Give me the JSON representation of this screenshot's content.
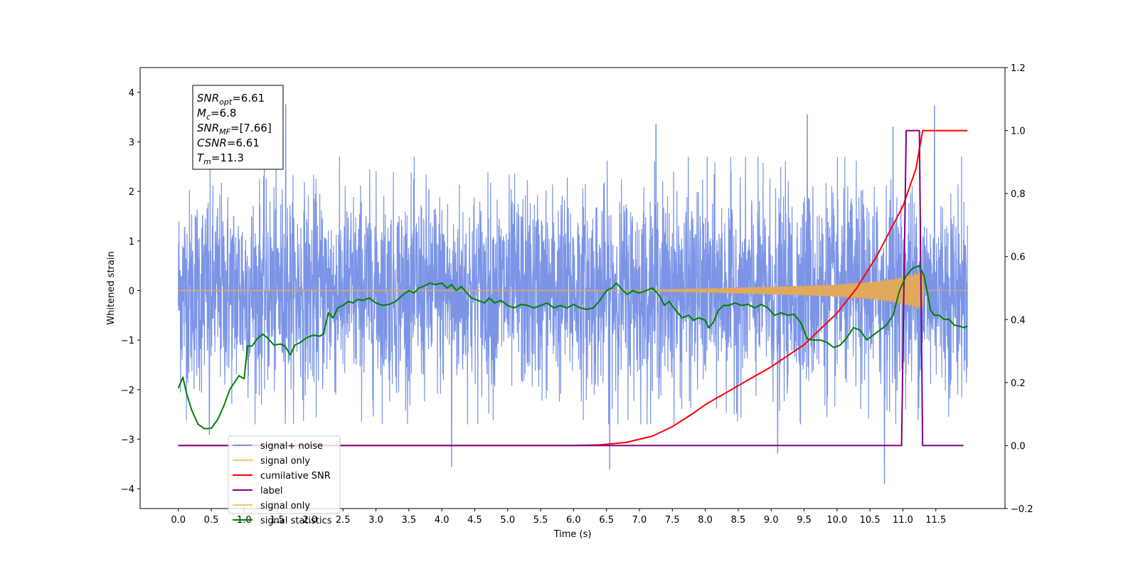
{
  "chart_data": {
    "type": "line",
    "xlabel": "Time (s)",
    "ylabel": "Whitened strain",
    "xlim": [
      -0.58,
      12.55
    ],
    "ylim": [
      -4.4,
      4.5
    ],
    "y2lim": [
      -0.2,
      1.2
    ],
    "x_ticks": [
      "0.0",
      "0.5",
      "1.0",
      "1.5",
      "2.0",
      "2.5",
      "3.0",
      "3.5",
      "4.0",
      "4.5",
      "5.0",
      "5.5",
      "6.0",
      "6.5",
      "7.0",
      "7.5",
      "8.0",
      "8.5",
      "9.0",
      "9.5",
      "10.0",
      "10.5",
      "11.0",
      "11.5"
    ],
    "y_ticks": [
      "4",
      "3",
      "2",
      "1",
      "0",
      "−1",
      "−2",
      "−3",
      "−4"
    ],
    "y2_ticks": [
      "1.2",
      "1.0",
      "0.8",
      "0.6",
      "0.4",
      "0.2",
      "0.0",
      "−0.2"
    ],
    "legend_position": "lower-left",
    "legend": [
      "signal+ noise",
      "signal only",
      "cumilative SNR",
      "label",
      "signal only",
      "signal statistics"
    ],
    "annotation": {
      "lines": [
        {
          "label": "SNR",
          "sub": "opt",
          "value": "=6.61"
        },
        {
          "label": "M",
          "sub": "c",
          "value": "=6.8"
        },
        {
          "label": "SNR",
          "sub": "MF",
          "value": "=[7.66]"
        },
        {
          "label": "CSNR",
          "sub": "",
          "value": "=6.61"
        },
        {
          "label": "T",
          "sub": "m",
          "value": "=11.3"
        }
      ]
    },
    "series": [
      {
        "name": "signal+ noise",
        "color": "#7b94e6",
        "kind": "noise",
        "x_range": [
          0.0,
          11.98
        ],
        "peaks": [
          [
            1.63,
            3.75
          ],
          [
            11.48,
            3.72
          ],
          [
            9.55,
            3.55
          ],
          [
            7.25,
            3.35
          ],
          [
            10.85,
            3.3
          ],
          [
            0.47,
            -2.9
          ],
          [
            4.15,
            -3.55
          ],
          [
            6.55,
            -3.6
          ],
          [
            10.72,
            -3.9
          ],
          [
            9.1,
            -3.28
          ]
        ]
      },
      {
        "name": "signal only",
        "color": "#e0a95d",
        "kind": "chirp",
        "x_range": [
          0.0,
          11.98
        ],
        "t_merger": 11.3,
        "envelope": [
          [
            7.3,
            0.02
          ],
          [
            8.0,
            0.04
          ],
          [
            8.5,
            0.06
          ],
          [
            9.0,
            0.08
          ],
          [
            9.5,
            0.1
          ],
          [
            10.0,
            0.13
          ],
          [
            10.5,
            0.18
          ],
          [
            10.9,
            0.25
          ],
          [
            11.1,
            0.32
          ],
          [
            11.3,
            0.4
          ],
          [
            11.32,
            0.0
          ]
        ]
      },
      {
        "name": "cumilative SNR",
        "color": "#ff0000",
        "axis": "right",
        "points": [
          [
            0.0,
            0.0
          ],
          [
            6.0,
            0.0
          ],
          [
            6.4,
            0.002
          ],
          [
            6.8,
            0.01
          ],
          [
            7.2,
            0.03
          ],
          [
            7.5,
            0.06
          ],
          [
            7.8,
            0.1
          ],
          [
            8.0,
            0.13
          ],
          [
            8.5,
            0.19
          ],
          [
            9.0,
            0.25
          ],
          [
            9.5,
            0.32
          ],
          [
            10.0,
            0.42
          ],
          [
            10.3,
            0.5
          ],
          [
            10.6,
            0.6
          ],
          [
            10.8,
            0.68
          ],
          [
            11.0,
            0.76
          ],
          [
            11.1,
            0.82
          ],
          [
            11.2,
            0.88
          ],
          [
            11.25,
            0.94
          ],
          [
            11.3,
            1.0
          ],
          [
            11.98,
            1.0
          ]
        ]
      },
      {
        "name": "label",
        "color": "#800080",
        "axis": "right",
        "points": [
          [
            0.0,
            0.0
          ],
          [
            10.98,
            0.0
          ],
          [
            11.05,
            1.0
          ],
          [
            11.25,
            1.0
          ],
          [
            11.3,
            0.0
          ],
          [
            11.92,
            0.0
          ]
        ]
      },
      {
        "name": "signal statistics",
        "color": "#008000",
        "axis": "left",
        "points": [
          [
            0.0,
            -1.97
          ],
          [
            0.07,
            -1.75
          ],
          [
            0.12,
            -2.05
          ],
          [
            0.2,
            -2.4
          ],
          [
            0.3,
            -2.7
          ],
          [
            0.4,
            -2.79
          ],
          [
            0.5,
            -2.78
          ],
          [
            0.6,
            -2.6
          ],
          [
            0.7,
            -2.3
          ],
          [
            0.78,
            -2.0
          ],
          [
            0.85,
            -1.86
          ],
          [
            0.92,
            -1.72
          ],
          [
            1.0,
            -1.78
          ],
          [
            1.05,
            -1.12
          ],
          [
            1.12,
            -1.12
          ],
          [
            1.2,
            -0.97
          ],
          [
            1.28,
            -0.88
          ],
          [
            1.35,
            -0.95
          ],
          [
            1.45,
            -1.1
          ],
          [
            1.55,
            -1.08
          ],
          [
            1.62,
            -1.12
          ],
          [
            1.7,
            -1.3
          ],
          [
            1.77,
            -1.1
          ],
          [
            1.85,
            -1.05
          ],
          [
            1.95,
            -0.95
          ],
          [
            2.05,
            -0.9
          ],
          [
            2.15,
            -0.92
          ],
          [
            2.2,
            -0.88
          ],
          [
            2.28,
            -0.45
          ],
          [
            2.35,
            -0.55
          ],
          [
            2.42,
            -0.35
          ],
          [
            2.5,
            -0.3
          ],
          [
            2.58,
            -0.22
          ],
          [
            2.65,
            -0.25
          ],
          [
            2.72,
            -0.18
          ],
          [
            2.8,
            -0.2
          ],
          [
            2.9,
            -0.15
          ],
          [
            3.0,
            -0.25
          ],
          [
            3.1,
            -0.3
          ],
          [
            3.2,
            -0.28
          ],
          [
            3.3,
            -0.22
          ],
          [
            3.4,
            -0.1
          ],
          [
            3.5,
            0.0
          ],
          [
            3.58,
            -0.05
          ],
          [
            3.65,
            0.05
          ],
          [
            3.75,
            0.1
          ],
          [
            3.82,
            0.15
          ],
          [
            3.9,
            0.12
          ],
          [
            4.0,
            0.15
          ],
          [
            4.08,
            0.05
          ],
          [
            4.15,
            0.12
          ],
          [
            4.22,
            0.0
          ],
          [
            4.3,
            0.08
          ],
          [
            4.38,
            -0.05
          ],
          [
            4.45,
            -0.15
          ],
          [
            4.55,
            -0.2
          ],
          [
            4.65,
            -0.25
          ],
          [
            4.72,
            -0.15
          ],
          [
            4.8,
            -0.25
          ],
          [
            4.9,
            -0.2
          ],
          [
            5.0,
            -0.3
          ],
          [
            5.1,
            -0.35
          ],
          [
            5.2,
            -0.28
          ],
          [
            5.3,
            -0.3
          ],
          [
            5.4,
            -0.35
          ],
          [
            5.5,
            -0.3
          ],
          [
            5.6,
            -0.25
          ],
          [
            5.7,
            -0.35
          ],
          [
            5.8,
            -0.3
          ],
          [
            5.9,
            -0.35
          ],
          [
            6.0,
            -0.28
          ],
          [
            6.1,
            -0.35
          ],
          [
            6.2,
            -0.38
          ],
          [
            6.3,
            -0.35
          ],
          [
            6.4,
            -0.2
          ],
          [
            6.5,
            0.0
          ],
          [
            6.58,
            0.05
          ],
          [
            6.65,
            0.15
          ],
          [
            6.75,
            0.0
          ],
          [
            6.82,
            -0.08
          ],
          [
            6.9,
            0.0
          ],
          [
            7.0,
            -0.05
          ],
          [
            7.1,
            0.0
          ],
          [
            7.2,
            0.05
          ],
          [
            7.3,
            -0.1
          ],
          [
            7.38,
            -0.3
          ],
          [
            7.45,
            -0.22
          ],
          [
            7.55,
            -0.4
          ],
          [
            7.65,
            -0.55
          ],
          [
            7.75,
            -0.5
          ],
          [
            7.82,
            -0.6
          ],
          [
            7.9,
            -0.55
          ],
          [
            8.0,
            -0.6
          ],
          [
            8.05,
            -0.75
          ],
          [
            8.12,
            -0.65
          ],
          [
            8.2,
            -0.4
          ],
          [
            8.28,
            -0.3
          ],
          [
            8.35,
            -0.3
          ],
          [
            8.45,
            -0.25
          ],
          [
            8.55,
            -0.3
          ],
          [
            8.65,
            -0.28
          ],
          [
            8.75,
            -0.35
          ],
          [
            8.85,
            -0.28
          ],
          [
            8.95,
            -0.35
          ],
          [
            9.05,
            -0.5
          ],
          [
            9.15,
            -0.45
          ],
          [
            9.25,
            -0.5
          ],
          [
            9.35,
            -0.48
          ],
          [
            9.45,
            -0.65
          ],
          [
            9.55,
            -0.98
          ],
          [
            9.65,
            -1.0
          ],
          [
            9.75,
            -1.0
          ],
          [
            9.85,
            -1.05
          ],
          [
            9.95,
            -1.15
          ],
          [
            10.05,
            -1.1
          ],
          [
            10.15,
            -0.95
          ],
          [
            10.25,
            -0.75
          ],
          [
            10.35,
            -0.8
          ],
          [
            10.45,
            -1.0
          ],
          [
            10.55,
            -0.9
          ],
          [
            10.65,
            -0.8
          ],
          [
            10.75,
            -0.7
          ],
          [
            10.85,
            -0.5
          ],
          [
            10.95,
            0.0
          ],
          [
            11.05,
            0.3
          ],
          [
            11.15,
            0.45
          ],
          [
            11.25,
            0.5
          ],
          [
            11.32,
            0.3
          ],
          [
            11.38,
            -0.1
          ],
          [
            11.42,
            -0.4
          ],
          [
            11.48,
            -0.5
          ],
          [
            11.55,
            -0.5
          ],
          [
            11.62,
            -0.58
          ],
          [
            11.7,
            -0.58
          ],
          [
            11.78,
            -0.7
          ],
          [
            11.86,
            -0.72
          ],
          [
            11.93,
            -0.75
          ],
          [
            11.98,
            -0.72
          ]
        ]
      }
    ]
  }
}
